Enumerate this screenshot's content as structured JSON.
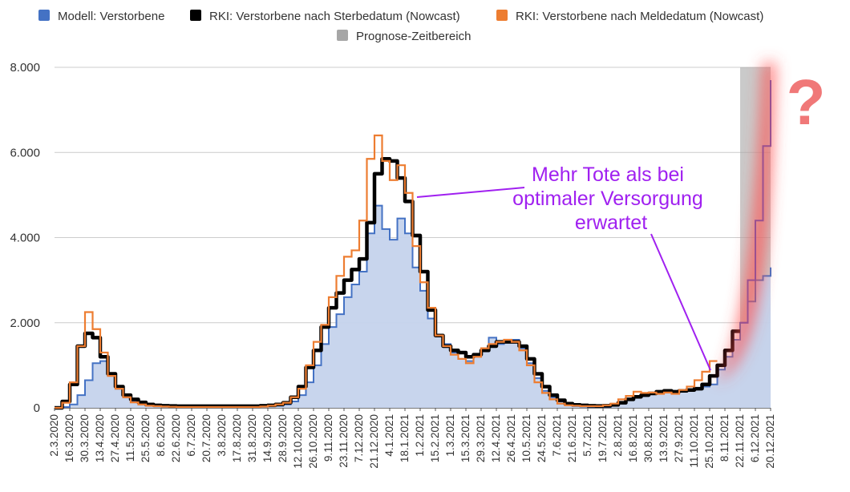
{
  "chart_data": {
    "type": "line",
    "ylim": [
      0,
      8000
    ],
    "y_ticks": [
      {
        "value": 0,
        "label": "0"
      },
      {
        "value": 2000,
        "label": "2.000"
      },
      {
        "value": 4000,
        "label": "4.000"
      },
      {
        "value": 6000,
        "label": "6.000"
      },
      {
        "value": 8000,
        "label": "8.000"
      }
    ],
    "x_tick_labels": [
      "2.3.2020",
      "16.3.2020",
      "30.3.2020",
      "13.4.2020",
      "27.4.2020",
      "11.5.2020",
      "25.5.2020",
      "8.6.2020",
      "22.6.2020",
      "6.7.2020",
      "20.7.2020",
      "3.8.2020",
      "17.8.2020",
      "31.8.2020",
      "14.9.2020",
      "28.9.2020",
      "12.10.2020",
      "26.10.2020",
      "9.11.2020",
      "23.11.2020",
      "7.12.2020",
      "21.12.2020",
      "4.1.2021",
      "18.1.2021",
      "1.2.2021",
      "15.2.2021",
      "1.3.2021",
      "15.3.2021",
      "29.3.2021",
      "12.4.2021",
      "26.4.2021",
      "10.5.2021",
      "24.5.2021",
      "7.6.2021",
      "21.6.2021",
      "5.7.2021",
      "19.7.2021",
      "2.8.2021",
      "16.8.2021",
      "30.8.2021",
      "13.9.2021",
      "27.9.2021",
      "11.10.2021",
      "25.10.2021",
      "8.11.2021",
      "22.11.2021",
      "6.12.2021",
      "20.12.2021"
    ],
    "x": [
      "2.3.2020",
      "9.3.2020",
      "16.3.2020",
      "23.3.2020",
      "30.3.2020",
      "6.4.2020",
      "13.4.2020",
      "20.4.2020",
      "27.4.2020",
      "4.5.2020",
      "11.5.2020",
      "18.5.2020",
      "25.5.2020",
      "1.6.2020",
      "8.6.2020",
      "15.6.2020",
      "22.6.2020",
      "29.6.2020",
      "6.7.2020",
      "13.7.2020",
      "20.7.2020",
      "27.7.2020",
      "3.8.2020",
      "10.8.2020",
      "17.8.2020",
      "24.8.2020",
      "31.8.2020",
      "7.9.2020",
      "14.9.2020",
      "21.9.2020",
      "28.9.2020",
      "5.10.2020",
      "12.10.2020",
      "19.10.2020",
      "26.10.2020",
      "2.11.2020",
      "9.11.2020",
      "16.11.2020",
      "23.11.2020",
      "30.11.2020",
      "7.12.2020",
      "14.12.2020",
      "21.12.2020",
      "28.12.2020",
      "4.1.2021",
      "11.1.2021",
      "18.1.2021",
      "25.1.2021",
      "1.2.2021",
      "8.2.2021",
      "15.2.2021",
      "22.2.2021",
      "1.3.2021",
      "8.3.2021",
      "15.3.2021",
      "22.3.2021",
      "29.3.2021",
      "5.4.2021",
      "12.4.2021",
      "19.4.2021",
      "26.4.2021",
      "3.5.2021",
      "10.5.2021",
      "17.5.2021",
      "24.5.2021",
      "31.5.2021",
      "7.6.2021",
      "14.6.2021",
      "21.6.2021",
      "28.6.2021",
      "5.7.2021",
      "12.7.2021",
      "19.7.2021",
      "26.7.2021",
      "2.8.2021",
      "9.8.2021",
      "16.8.2021",
      "23.8.2021",
      "30.8.2021",
      "6.9.2021",
      "13.9.2021",
      "20.9.2021",
      "27.9.2021",
      "4.10.2021",
      "11.10.2021",
      "18.10.2021",
      "25.10.2021",
      "1.11.2021",
      "8.11.2021",
      "15.11.2021",
      "22.11.2021",
      "29.11.2021",
      "6.12.2021",
      "13.12.2021",
      "20.12.2021"
    ],
    "series": [
      {
        "name": "Modell: Verstorbene",
        "color": "#4472c4",
        "fill": "#c5d3ec",
        "values": [
          0,
          20,
          80,
          300,
          650,
          1050,
          1100,
          780,
          450,
          250,
          150,
          90,
          60,
          40,
          30,
          25,
          20,
          20,
          20,
          20,
          20,
          20,
          20,
          20,
          20,
          20,
          20,
          30,
          40,
          50,
          80,
          150,
          300,
          600,
          1000,
          1500,
          1900,
          2200,
          2600,
          2900,
          3200,
          4100,
          4750,
          4200,
          3950,
          4450,
          4100,
          3300,
          2750,
          2100,
          1700,
          1500,
          1300,
          1150,
          1100,
          1250,
          1400,
          1650,
          1500,
          1600,
          1600,
          1400,
          1050,
          700,
          400,
          250,
          150,
          80,
          40,
          30,
          20,
          20,
          20,
          50,
          120,
          200,
          250,
          300,
          350,
          380,
          400,
          380,
          400,
          420,
          450,
          500,
          550,
          900,
          1200,
          1600,
          2000,
          2500,
          3000,
          3100,
          3300
        ]
      },
      {
        "name": "RKI: Verstorbene nach Sterbedatum (Nowcast)",
        "color": "#000000",
        "values": [
          0,
          150,
          550,
          1450,
          1750,
          1650,
          1200,
          800,
          500,
          300,
          200,
          130,
          80,
          60,
          50,
          45,
          40,
          40,
          40,
          40,
          40,
          40,
          40,
          40,
          40,
          40,
          40,
          50,
          60,
          80,
          120,
          250,
          500,
          950,
          1350,
          1900,
          2350,
          2700,
          3000,
          3250,
          3500,
          4350,
          5500,
          5850,
          5800,
          5400,
          4850,
          4050,
          3200,
          2300,
          1700,
          1450,
          1350,
          1300,
          1200,
          1250,
          1350,
          1450,
          1550,
          1550,
          1550,
          1450,
          1150,
          800,
          500,
          300,
          180,
          100,
          70,
          60,
          50,
          45,
          50,
          70,
          120,
          200,
          260,
          300,
          340,
          380,
          400,
          380,
          400,
          420,
          450,
          550,
          750,
          1000,
          1350,
          1800,
          null,
          null,
          null,
          null,
          null
        ]
      },
      {
        "name": "RKI: Verstorbene nach Meldedatum (Nowcast)",
        "color": "#ed7d31",
        "values": [
          0,
          120,
          600,
          1450,
          2250,
          1850,
          1300,
          750,
          450,
          250,
          130,
          80,
          50,
          40,
          30,
          25,
          20,
          20,
          20,
          20,
          20,
          20,
          20,
          20,
          20,
          20,
          20,
          30,
          50,
          80,
          120,
          250,
          450,
          1000,
          1550,
          1950,
          2600,
          3100,
          3550,
          3700,
          4400,
          5850,
          6400,
          5800,
          5350,
          5700,
          5050,
          3800,
          2950,
          2350,
          1700,
          1450,
          1250,
          1150,
          1050,
          1200,
          1400,
          1500,
          1550,
          1600,
          1550,
          1350,
          1000,
          600,
          350,
          200,
          100,
          60,
          50,
          40,
          40,
          40,
          60,
          100,
          200,
          280,
          380,
          350,
          360,
          330,
          360,
          330,
          420,
          500,
          650,
          850,
          1100,
          null,
          null,
          null,
          null,
          null,
          null,
          null,
          null
        ]
      },
      {
        "name": "Prognose-Zeitbereich",
        "color": "#a6a6a6",
        "range": [
          "22.11.2021",
          "20.12.2021"
        ]
      }
    ],
    "forecast_overlay": {
      "color": "#9a5090",
      "x": [
        "22.11.2021",
        "29.11.2021",
        "6.12.2021",
        "13.12.2021",
        "20.12.2021"
      ],
      "values": [
        2000,
        3000,
        4400,
        6150,
        7700
      ]
    },
    "grid": true,
    "legend": "top",
    "annotation": {
      "lines": [
        "Mehr Tote als bei",
        "optimaler Versorgung",
        "erwartet"
      ],
      "color": "#a020f0"
    },
    "question_mark": "?"
  }
}
